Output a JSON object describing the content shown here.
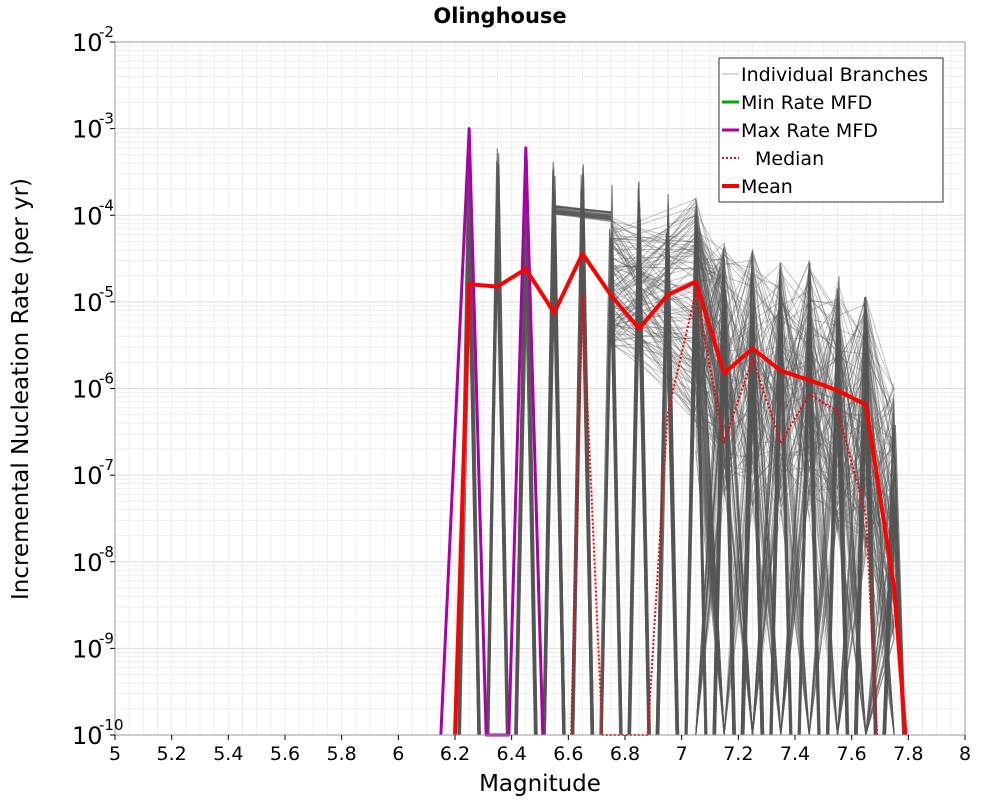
{
  "chart_data": {
    "type": "line",
    "title": "Olinghouse",
    "xlabel": "Magnitude",
    "ylabel": "Incremental Nucleation Rate (per yr)",
    "xlim": [
      5,
      8
    ],
    "ylim": [
      1e-10,
      0.01
    ],
    "yscale": "log",
    "grid": true,
    "legend_position": "top-right",
    "x_ticks": [
      "5",
      "5.2",
      "5.4",
      "5.6",
      "5.8",
      "6",
      "6.2",
      "6.4",
      "6.6",
      "6.8",
      "7",
      "7.2",
      "7.4",
      "7.6",
      "7.8",
      "8"
    ],
    "y_ticks": [
      {
        "base": "10",
        "exp": "-10",
        "value": 1e-10
      },
      {
        "base": "10",
        "exp": "-9",
        "value": 1e-09
      },
      {
        "base": "10",
        "exp": "-8",
        "value": 1e-08
      },
      {
        "base": "10",
        "exp": "-7",
        "value": 1e-07
      },
      {
        "base": "10",
        "exp": "-6",
        "value": 1e-06
      },
      {
        "base": "10",
        "exp": "-5",
        "value": 1e-05
      },
      {
        "base": "10",
        "exp": "-4",
        "value": 0.0001
      },
      {
        "base": "10",
        "exp": "-3",
        "value": 0.001
      },
      {
        "base": "10",
        "exp": "-2",
        "value": 0.01
      }
    ],
    "legend": [
      {
        "label": "Individual Branches",
        "color": "#b0b0b0",
        "style": "thin"
      },
      {
        "label": "Min Rate MFD",
        "color": "#00aa00",
        "style": "solid"
      },
      {
        "label": "Max Rate MFD",
        "color": "#aa00aa",
        "style": "solid"
      },
      {
        "label": "Median",
        "color": "#ff0000",
        "style": "dotted"
      },
      {
        "label": "Mean",
        "color": "#ff0000",
        "style": "thick"
      }
    ],
    "branch_color": "#555555",
    "branch_peaks": [
      {
        "x": 6.25,
        "y": 0.001
      },
      {
        "x": 6.35,
        "y": 0.0007
      },
      {
        "x": 6.45,
        "y": 0.0006
      },
      {
        "x": 6.55,
        "y": 0.00045
      },
      {
        "x": 6.65,
        "y": 0.0004
      },
      {
        "x": 6.75,
        "y": 0.00035
      },
      {
        "x": 6.85,
        "y": 0.00028
      },
      {
        "x": 6.95,
        "y": 0.00022
      },
      {
        "x": 7.05,
        "y": 0.00016
      },
      {
        "x": 7.15,
        "y": 5e-05
      },
      {
        "x": 7.25,
        "y": 4e-05
      },
      {
        "x": 7.35,
        "y": 3e-05
      },
      {
        "x": 7.45,
        "y": 3e-05
      },
      {
        "x": 7.55,
        "y": 2e-05
      },
      {
        "x": 7.65,
        "y": 1.2e-05
      },
      {
        "x": 7.75,
        "y": 1.2e-06
      }
    ],
    "series": [
      {
        "name": "Max Rate MFD",
        "color": "#aa00aa",
        "x": [
          6.15,
          6.25,
          6.31,
          6.39,
          6.45,
          6.51
        ],
        "y": [
          1e-10,
          0.001,
          1e-10,
          1e-10,
          0.0006,
          1e-10
        ]
      },
      {
        "name": "Median",
        "color": "#ff0000",
        "x": [
          6.61,
          6.65,
          6.72,
          6.88,
          6.95,
          7.05,
          7.15,
          7.25,
          7.35,
          7.45,
          7.55,
          7.65,
          7.69
        ],
        "y": [
          1e-10,
          1.2e-05,
          1e-10,
          1e-10,
          5e-07,
          1.3e-05,
          2.4e-07,
          2.2e-06,
          2.4e-07,
          8.5e-07,
          5.5e-07,
          3.5e-08,
          1e-10
        ]
      },
      {
        "name": "Mean",
        "color": "#ff0000",
        "x": [
          6.2,
          6.25,
          6.35,
          6.45,
          6.55,
          6.65,
          6.75,
          6.85,
          6.95,
          7.05,
          7.15,
          7.25,
          7.35,
          7.45,
          7.55,
          7.65,
          7.75,
          7.79
        ],
        "y": [
          1e-10,
          1.6e-05,
          1.5e-05,
          2.4e-05,
          7.5e-06,
          3.6e-05,
          1.2e-05,
          4.9e-06,
          1.2e-05,
          1.7e-05,
          1.5e-06,
          2.9e-06,
          1.6e-06,
          1.25e-06,
          9.5e-07,
          6.5e-07,
          5e-09,
          1e-10
        ]
      }
    ]
  }
}
